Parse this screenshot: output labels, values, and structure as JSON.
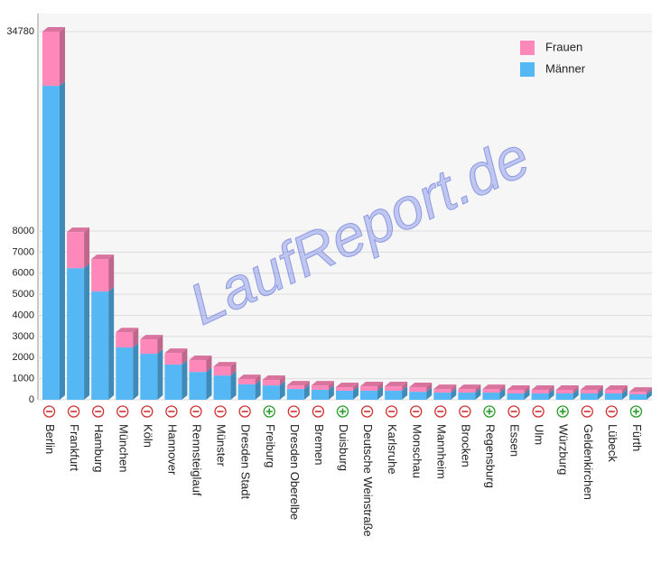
{
  "chart_data": {
    "type": "stacked-bar",
    "watermark": "LaufReport.de",
    "categories": [
      "Berlin",
      "Frankfurt",
      "Hamburg",
      "München",
      "Köln",
      "Hannover",
      "Rennsteiglauf",
      "Münster",
      "Dresden Stadt",
      "Freiburg",
      "Dresden Oberelbe",
      "Bremen",
      "Duisburg",
      "Deutsche Weinstraße",
      "Karlsruhe",
      "Monschau",
      "Mannheim",
      "Brocken",
      "Regensburg",
      "Essen",
      "Ulm",
      "Würzburg",
      "Geldenkirchen",
      "Lübeck",
      "Fürth"
    ],
    "toggles": [
      "minus",
      "minus",
      "minus",
      "minus",
      "minus",
      "minus",
      "minus",
      "minus",
      "minus",
      "plus",
      "minus",
      "minus",
      "plus",
      "minus",
      "minus",
      "minus",
      "minus",
      "minus",
      "plus",
      "minus",
      "minus",
      "plus",
      "minus",
      "minus",
      "plus"
    ],
    "series": [
      {
        "name": "Männer",
        "color": "#55b8f5",
        "values": [
          27500,
          6240,
          5130,
          2480,
          2180,
          1670,
          1320,
          1150,
          730,
          680,
          510,
          470,
          430,
          430,
          430,
          380,
          340,
          340,
          340,
          300,
          300,
          300,
          300,
          300,
          260
        ]
      },
      {
        "name": "Frauen",
        "color": "#ff88bb",
        "values": [
          7280,
          1710,
          1540,
          720,
          680,
          550,
          560,
          430,
          250,
          260,
          170,
          210,
          170,
          210,
          210,
          220,
          170,
          170,
          170,
          170,
          170,
          170,
          170,
          170,
          120
        ]
      }
    ],
    "ylim": [
      0,
      34780
    ],
    "axis_break": 8000,
    "yticks": [
      0,
      1000,
      2000,
      3000,
      4000,
      5000,
      6000,
      7000,
      8000,
      34780
    ],
    "grid": true,
    "legend": "top-right"
  }
}
